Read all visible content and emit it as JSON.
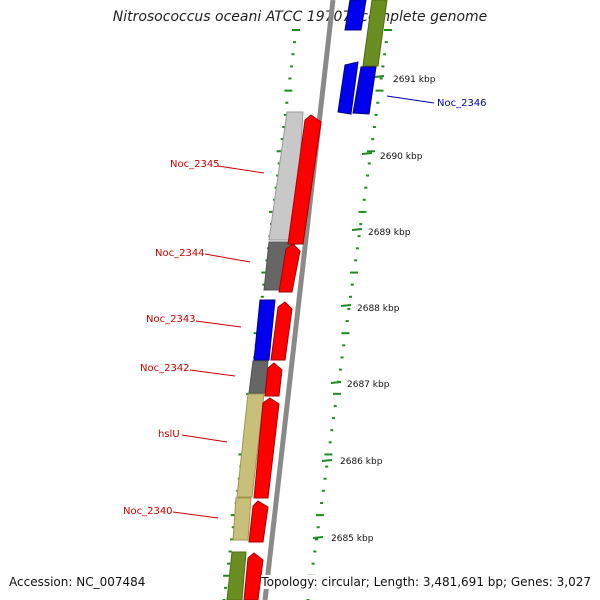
{
  "title": "Nitrosococcus oceani ATCC 19707, complete genome",
  "accession": "Accession: NC_007484",
  "topology": "Topology: circular; Length: 3,481,691 bp; Genes: 3,027",
  "colors": {
    "forward_cds": "#ff0000",
    "gene_blue": "#0000ff",
    "gene_olive": "#6b8e23",
    "gene_khaki": "#bdb76b",
    "gene_lightgray": "#c0c0c0",
    "gene_darkgray": "#666666",
    "backbone": "#888888",
    "tick": "#1f8a1f",
    "label_red": "#cc0000",
    "label_blue": "#0000aa"
  },
  "kbp_ticks": [
    {
      "label": "2685 kbp"
    },
    {
      "label": "2686 kbp"
    },
    {
      "label": "2687 kbp"
    },
    {
      "label": "2688 kbp"
    },
    {
      "label": "2689 kbp"
    },
    {
      "label": "2690 kbp"
    },
    {
      "label": "2691 kbp"
    }
  ],
  "gene_labels": [
    {
      "text": "Noc_2345",
      "color": "red"
    },
    {
      "text": "Noc_2344",
      "color": "red"
    },
    {
      "text": "Noc_2343",
      "color": "red"
    },
    {
      "text": "Noc_2342",
      "color": "red"
    },
    {
      "text": "hslU",
      "color": "red"
    },
    {
      "text": "Noc_2340",
      "color": "red"
    },
    {
      "text": "Noc_2346",
      "color": "blue"
    }
  ]
}
